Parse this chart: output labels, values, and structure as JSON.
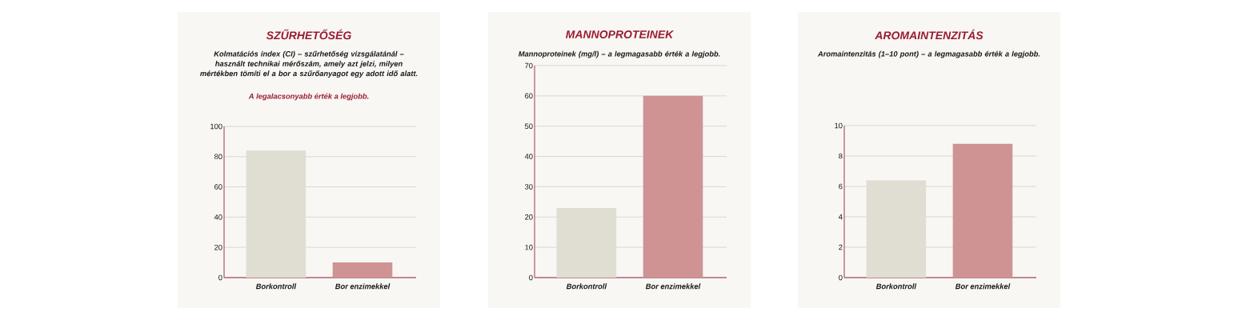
{
  "chart_data": [
    {
      "type": "bar",
      "title": "SZŰRHETŐSÉG",
      "subtitle": "Kolmatációs index (CI) – szűrhetőség vizsgálatánál – használt technikai mérőszám, amely azt jelzi, milyen mértékben tömíti el a bor a szűrőanyagot egy adott idő alatt.",
      "annotations": [
        "A legalacsonyabb érték a legjobb."
      ],
      "categories": [
        "Borkontroll",
        "Bor enzimekkel"
      ],
      "values": [
        84,
        10
      ],
      "colors": [
        "#e0ddd2",
        "#cf9393"
      ],
      "ylim": [
        0,
        100
      ],
      "yticks": [
        0,
        20,
        40,
        60,
        80,
        100
      ],
      "grid": "y"
    },
    {
      "type": "bar",
      "title": "MANNOPROTEINEK",
      "subtitle": "Mannoproteinek (mg/l) – a legmagasabb érték a legjobb.",
      "categories": [
        "Borkontroll",
        "Bor enzimekkel"
      ],
      "values": [
        23,
        60
      ],
      "colors": [
        "#e0ddd2",
        "#cf9393"
      ],
      "ylim": [
        0,
        70
      ],
      "yticks": [
        0,
        10,
        20,
        30,
        40,
        50,
        60,
        70
      ],
      "grid": "y"
    },
    {
      "type": "bar",
      "title": "AROMAINTENZITÁS",
      "subtitle": "Aromaintenzitás (1–10 pont) – a legmagasabb érték a legjobb.",
      "categories": [
        "Borkontroll",
        "Bor enzimekkel"
      ],
      "values": [
        6.4,
        8.8
      ],
      "colors": [
        "#e0ddd2",
        "#cf9393"
      ],
      "ylim": [
        0,
        10
      ],
      "yticks": [
        0,
        2,
        4,
        6,
        8,
        10
      ],
      "grid": "y"
    }
  ]
}
